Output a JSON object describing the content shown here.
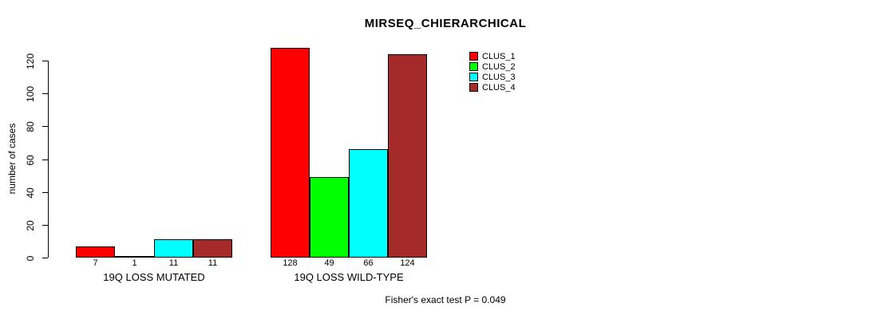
{
  "chart_data": {
    "type": "bar",
    "title": "MIRSEQ_CHIERARCHICAL",
    "ylabel": "number of cases",
    "categories": [
      "19Q LOSS MUTATED",
      "19Q LOSS WILD-TYPE"
    ],
    "series": [
      {
        "name": "CLUS_1",
        "color": "#FF0000",
        "values": [
          7,
          128
        ]
      },
      {
        "name": "CLUS_2",
        "color": "#00FF00",
        "values": [
          1,
          49
        ]
      },
      {
        "name": "CLUS_3",
        "color": "#00FFFF",
        "values": [
          11,
          66
        ]
      },
      {
        "name": "CLUS_4",
        "color": "#A52A2A",
        "values": [
          11,
          124
        ]
      }
    ],
    "yticks": [
      0,
      20,
      40,
      60,
      80,
      100,
      120
    ],
    "ylim": [
      0,
      130
    ],
    "grid": false,
    "legend_position": "top-right",
    "bar_value_labels": true,
    "annotation": "Fisher's exact test P = 0.049"
  },
  "legend": {
    "entries": [
      {
        "label": "CLUS_1",
        "color": "#FF0000"
      },
      {
        "label": "CLUS_2",
        "color": "#00FF00"
      },
      {
        "label": "CLUS_3",
        "color": "#00FFFF"
      },
      {
        "label": "CLUS_4",
        "color": "#A52A2A"
      }
    ]
  }
}
